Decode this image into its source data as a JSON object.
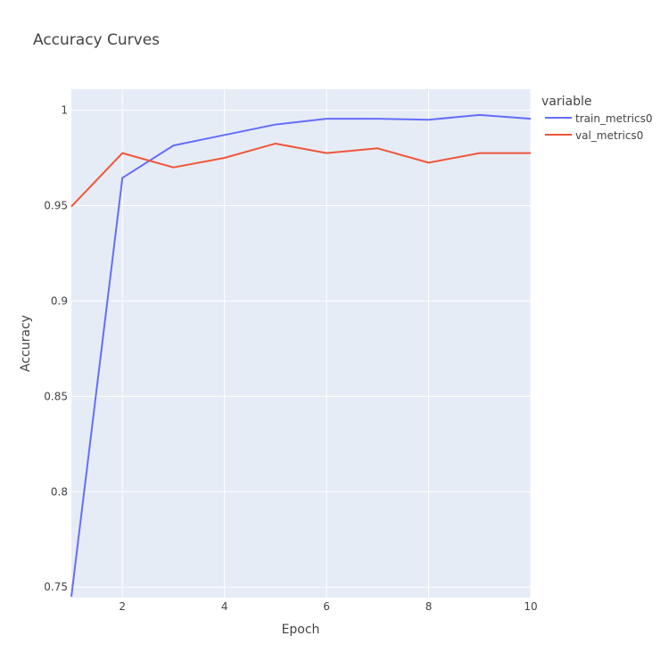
{
  "chart_data": {
    "type": "line",
    "title": "Accuracy Curves",
    "xlabel": "Epoch",
    "ylabel": "Accuracy",
    "xlim": [
      1,
      10
    ],
    "ylim": [
      0.7445,
      1.011
    ],
    "x_ticks": [
      2,
      4,
      6,
      8,
      10
    ],
    "y_ticks": [
      0.75,
      0.8,
      0.85,
      0.9,
      0.95,
      1
    ],
    "y_tick_labels": [
      "0.75",
      "0.8",
      "0.85",
      "0.9",
      "0.95",
      "1"
    ],
    "grid": true,
    "plot_background": "#E5ECF6",
    "grid_color": "#FFFFFF",
    "legend": {
      "title": "variable",
      "position": "top-right, outside plot"
    },
    "x": [
      1,
      2,
      3,
      4,
      5,
      6,
      7,
      8,
      9,
      10
    ],
    "series": [
      {
        "name": "train_metrics0",
        "color": "#636EFA",
        "values": [
          0.745,
          0.9645,
          0.9815,
          0.987,
          0.9925,
          0.9955,
          0.9955,
          0.995,
          0.9975,
          0.9955
        ]
      },
      {
        "name": "val_metrics0",
        "color": "#EF553B",
        "values": [
          0.9495,
          0.9775,
          0.97,
          0.975,
          0.9825,
          0.9775,
          0.98,
          0.9725,
          0.9775,
          0.9775
        ]
      }
    ]
  }
}
